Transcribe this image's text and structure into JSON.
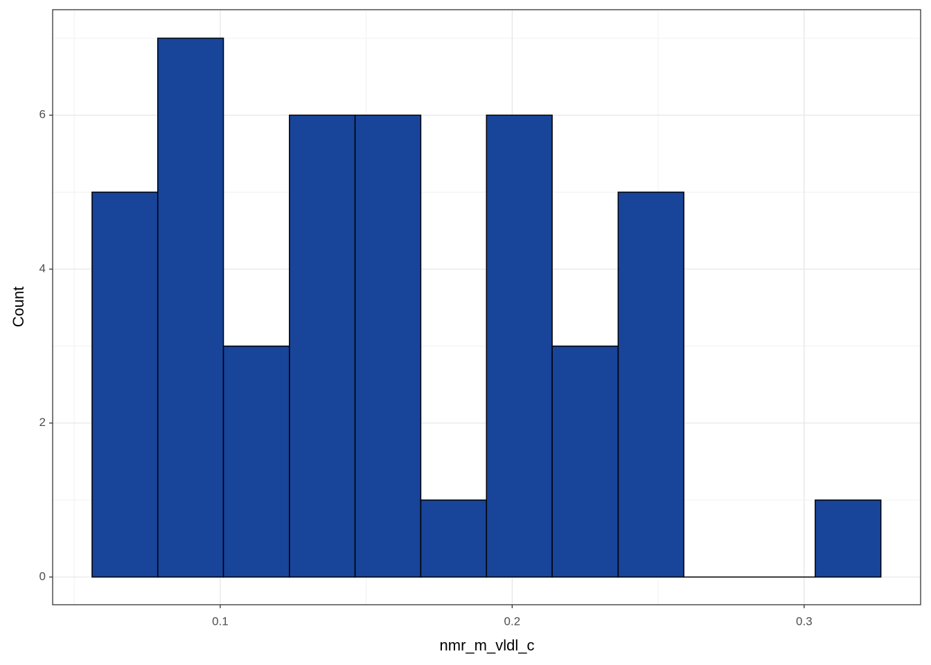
{
  "chart_data": {
    "type": "histogram",
    "xlabel": "nmr_m_vldl_c",
    "ylabel": "Count",
    "bins": [
      0.0561,
      0.0786,
      0.1011,
      0.1237,
      0.1462,
      0.1687,
      0.1912,
      0.2137,
      0.2363,
      0.2588,
      0.2813,
      0.3038,
      0.3263
    ],
    "values": [
      5,
      7,
      3,
      6,
      6,
      1,
      6,
      3,
      5,
      0,
      0,
      1
    ],
    "color": "#18449a",
    "edgecolor": "#000000",
    "xlim": [
      0.0426,
      0.3399
    ],
    "ylim": [
      -0.36,
      7.37
    ],
    "xticks": [
      0.1,
      0.2,
      0.3
    ],
    "yticks": [
      0,
      2,
      4,
      6
    ],
    "xminor": [
      0.05,
      0.15,
      0.25
    ],
    "yminor": [
      1,
      3,
      5,
      7
    ],
    "grid": true
  }
}
